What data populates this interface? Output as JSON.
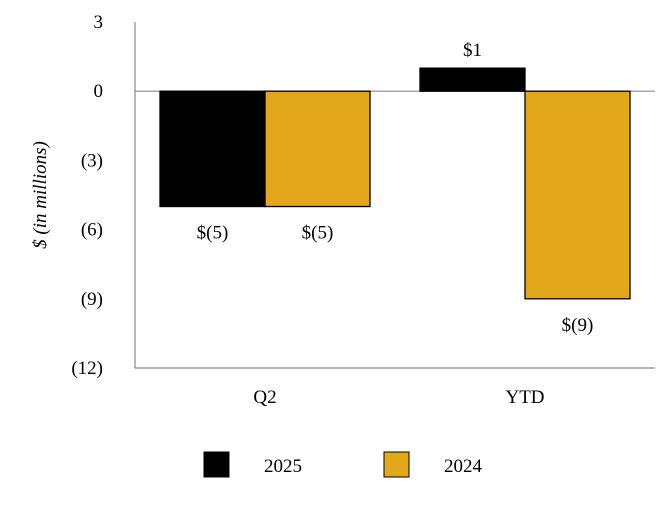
{
  "chart_data": {
    "type": "bar",
    "title": "",
    "xlabel": "",
    "ylabel": "$ (in millions)",
    "categories": [
      "Q2",
      "YTD"
    ],
    "ylim": [
      -12,
      3
    ],
    "yticks": [
      3,
      0,
      -3,
      -6,
      -9,
      -12
    ],
    "ytick_labels": [
      "3",
      "0",
      "(3)",
      "(6)",
      "(9)",
      "(12)"
    ],
    "series": [
      {
        "name": "2025",
        "color": "#000000",
        "values": [
          -5,
          1
        ],
        "labels": [
          "$(5)",
          "$1"
        ]
      },
      {
        "name": "2024",
        "color": "#E3A71B",
        "values": [
          -5,
          -9
        ],
        "labels": [
          "$(5)",
          "$(9)"
        ]
      }
    ],
    "legend_position": "bottom"
  }
}
